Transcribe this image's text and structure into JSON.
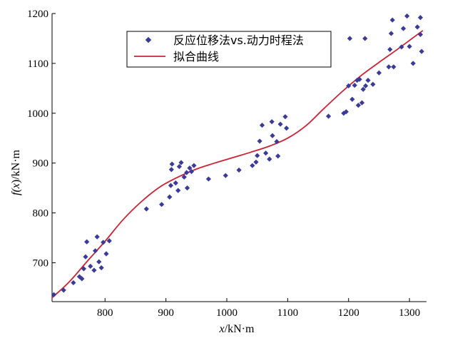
{
  "chart_data": {
    "type": "scatter",
    "xlabel_italic": "x",
    "xlabel_unit": "/kN·m",
    "ylabel_prefix": "f(",
    "ylabel_italic": "x",
    "ylabel_suffix": ")/kN·m",
    "xlim": [
      713,
      1328
    ],
    "ylim": [
      622,
      1200
    ],
    "x_ticks": [
      800,
      900,
      1000,
      1100,
      1200,
      1300
    ],
    "y_ticks": [
      700,
      800,
      900,
      1000,
      1100,
      1200
    ],
    "grid": false,
    "legend_position": "top-center",
    "legend": [
      "反应位移法vs.动力时程法",
      "拟合曲线"
    ],
    "colors": {
      "scatter": "#3a3a9a",
      "fit": "#cc2233"
    },
    "scatter": [
      [
        716,
        636
      ],
      [
        732,
        645
      ],
      [
        748,
        660
      ],
      [
        758,
        672
      ],
      [
        762,
        668
      ],
      [
        765,
        688
      ],
      [
        768,
        712
      ],
      [
        770,
        742
      ],
      [
        776,
        693
      ],
      [
        782,
        685
      ],
      [
        784,
        724
      ],
      [
        787,
        752
      ],
      [
        790,
        702
      ],
      [
        794,
        690
      ],
      [
        797,
        741
      ],
      [
        802,
        718
      ],
      [
        807,
        744
      ],
      [
        868,
        808
      ],
      [
        893,
        817
      ],
      [
        906,
        832
      ],
      [
        908,
        855
      ],
      [
        909,
        887
      ],
      [
        910,
        898
      ],
      [
        916,
        860
      ],
      [
        920,
        845
      ],
      [
        922,
        893
      ],
      [
        925,
        901
      ],
      [
        930,
        872
      ],
      [
        934,
        881
      ],
      [
        935,
        850
      ],
      [
        939,
        890
      ],
      [
        942,
        883
      ],
      [
        946,
        895
      ],
      [
        970,
        868
      ],
      [
        998,
        875
      ],
      [
        1020,
        886
      ],
      [
        1042,
        895
      ],
      [
        1048,
        902
      ],
      [
        1050,
        915
      ],
      [
        1054,
        944
      ],
      [
        1058,
        976
      ],
      [
        1064,
        920
      ],
      [
        1070,
        908
      ],
      [
        1074,
        983
      ],
      [
        1075,
        955
      ],
      [
        1082,
        943
      ],
      [
        1084,
        914
      ],
      [
        1088,
        978
      ],
      [
        1096,
        993
      ],
      [
        1098,
        970
      ],
      [
        1167,
        994
      ],
      [
        1192,
        1000
      ],
      [
        1196,
        1003
      ],
      [
        1200,
        1055
      ],
      [
        1202,
        1150
      ],
      [
        1206,
        1028
      ],
      [
        1210,
        1056
      ],
      [
        1214,
        1066
      ],
      [
        1216,
        1016
      ],
      [
        1218,
        1068
      ],
      [
        1222,
        1021
      ],
      [
        1224,
        1048
      ],
      [
        1227,
        1150
      ],
      [
        1228,
        1055
      ],
      [
        1232,
        1066
      ],
      [
        1240,
        1058
      ],
      [
        1250,
        1081
      ],
      [
        1266,
        1093
      ],
      [
        1268,
        1128
      ],
      [
        1270,
        1160
      ],
      [
        1272,
        1187
      ],
      [
        1274,
        1093
      ],
      [
        1287,
        1133
      ],
      [
        1290,
        1170
      ],
      [
        1296,
        1195
      ],
      [
        1300,
        1134
      ],
      [
        1306,
        1100
      ],
      [
        1313,
        1173
      ],
      [
        1318,
        1192
      ],
      [
        1318,
        1158
      ],
      [
        1320,
        1124
      ]
    ],
    "fit_curve": [
      [
        713,
        630
      ],
      [
        740,
        660
      ],
      [
        770,
        702
      ],
      [
        800,
        743
      ],
      [
        830,
        787
      ],
      [
        860,
        823
      ],
      [
        890,
        852
      ],
      [
        920,
        872
      ],
      [
        950,
        888
      ],
      [
        980,
        900
      ],
      [
        1010,
        911
      ],
      [
        1040,
        922
      ],
      [
        1070,
        934
      ],
      [
        1100,
        950
      ],
      [
        1130,
        975
      ],
      [
        1160,
        1010
      ],
      [
        1190,
        1044
      ],
      [
        1220,
        1075
      ],
      [
        1250,
        1102
      ],
      [
        1280,
        1128
      ],
      [
        1300,
        1146
      ],
      [
        1322,
        1166
      ]
    ]
  }
}
